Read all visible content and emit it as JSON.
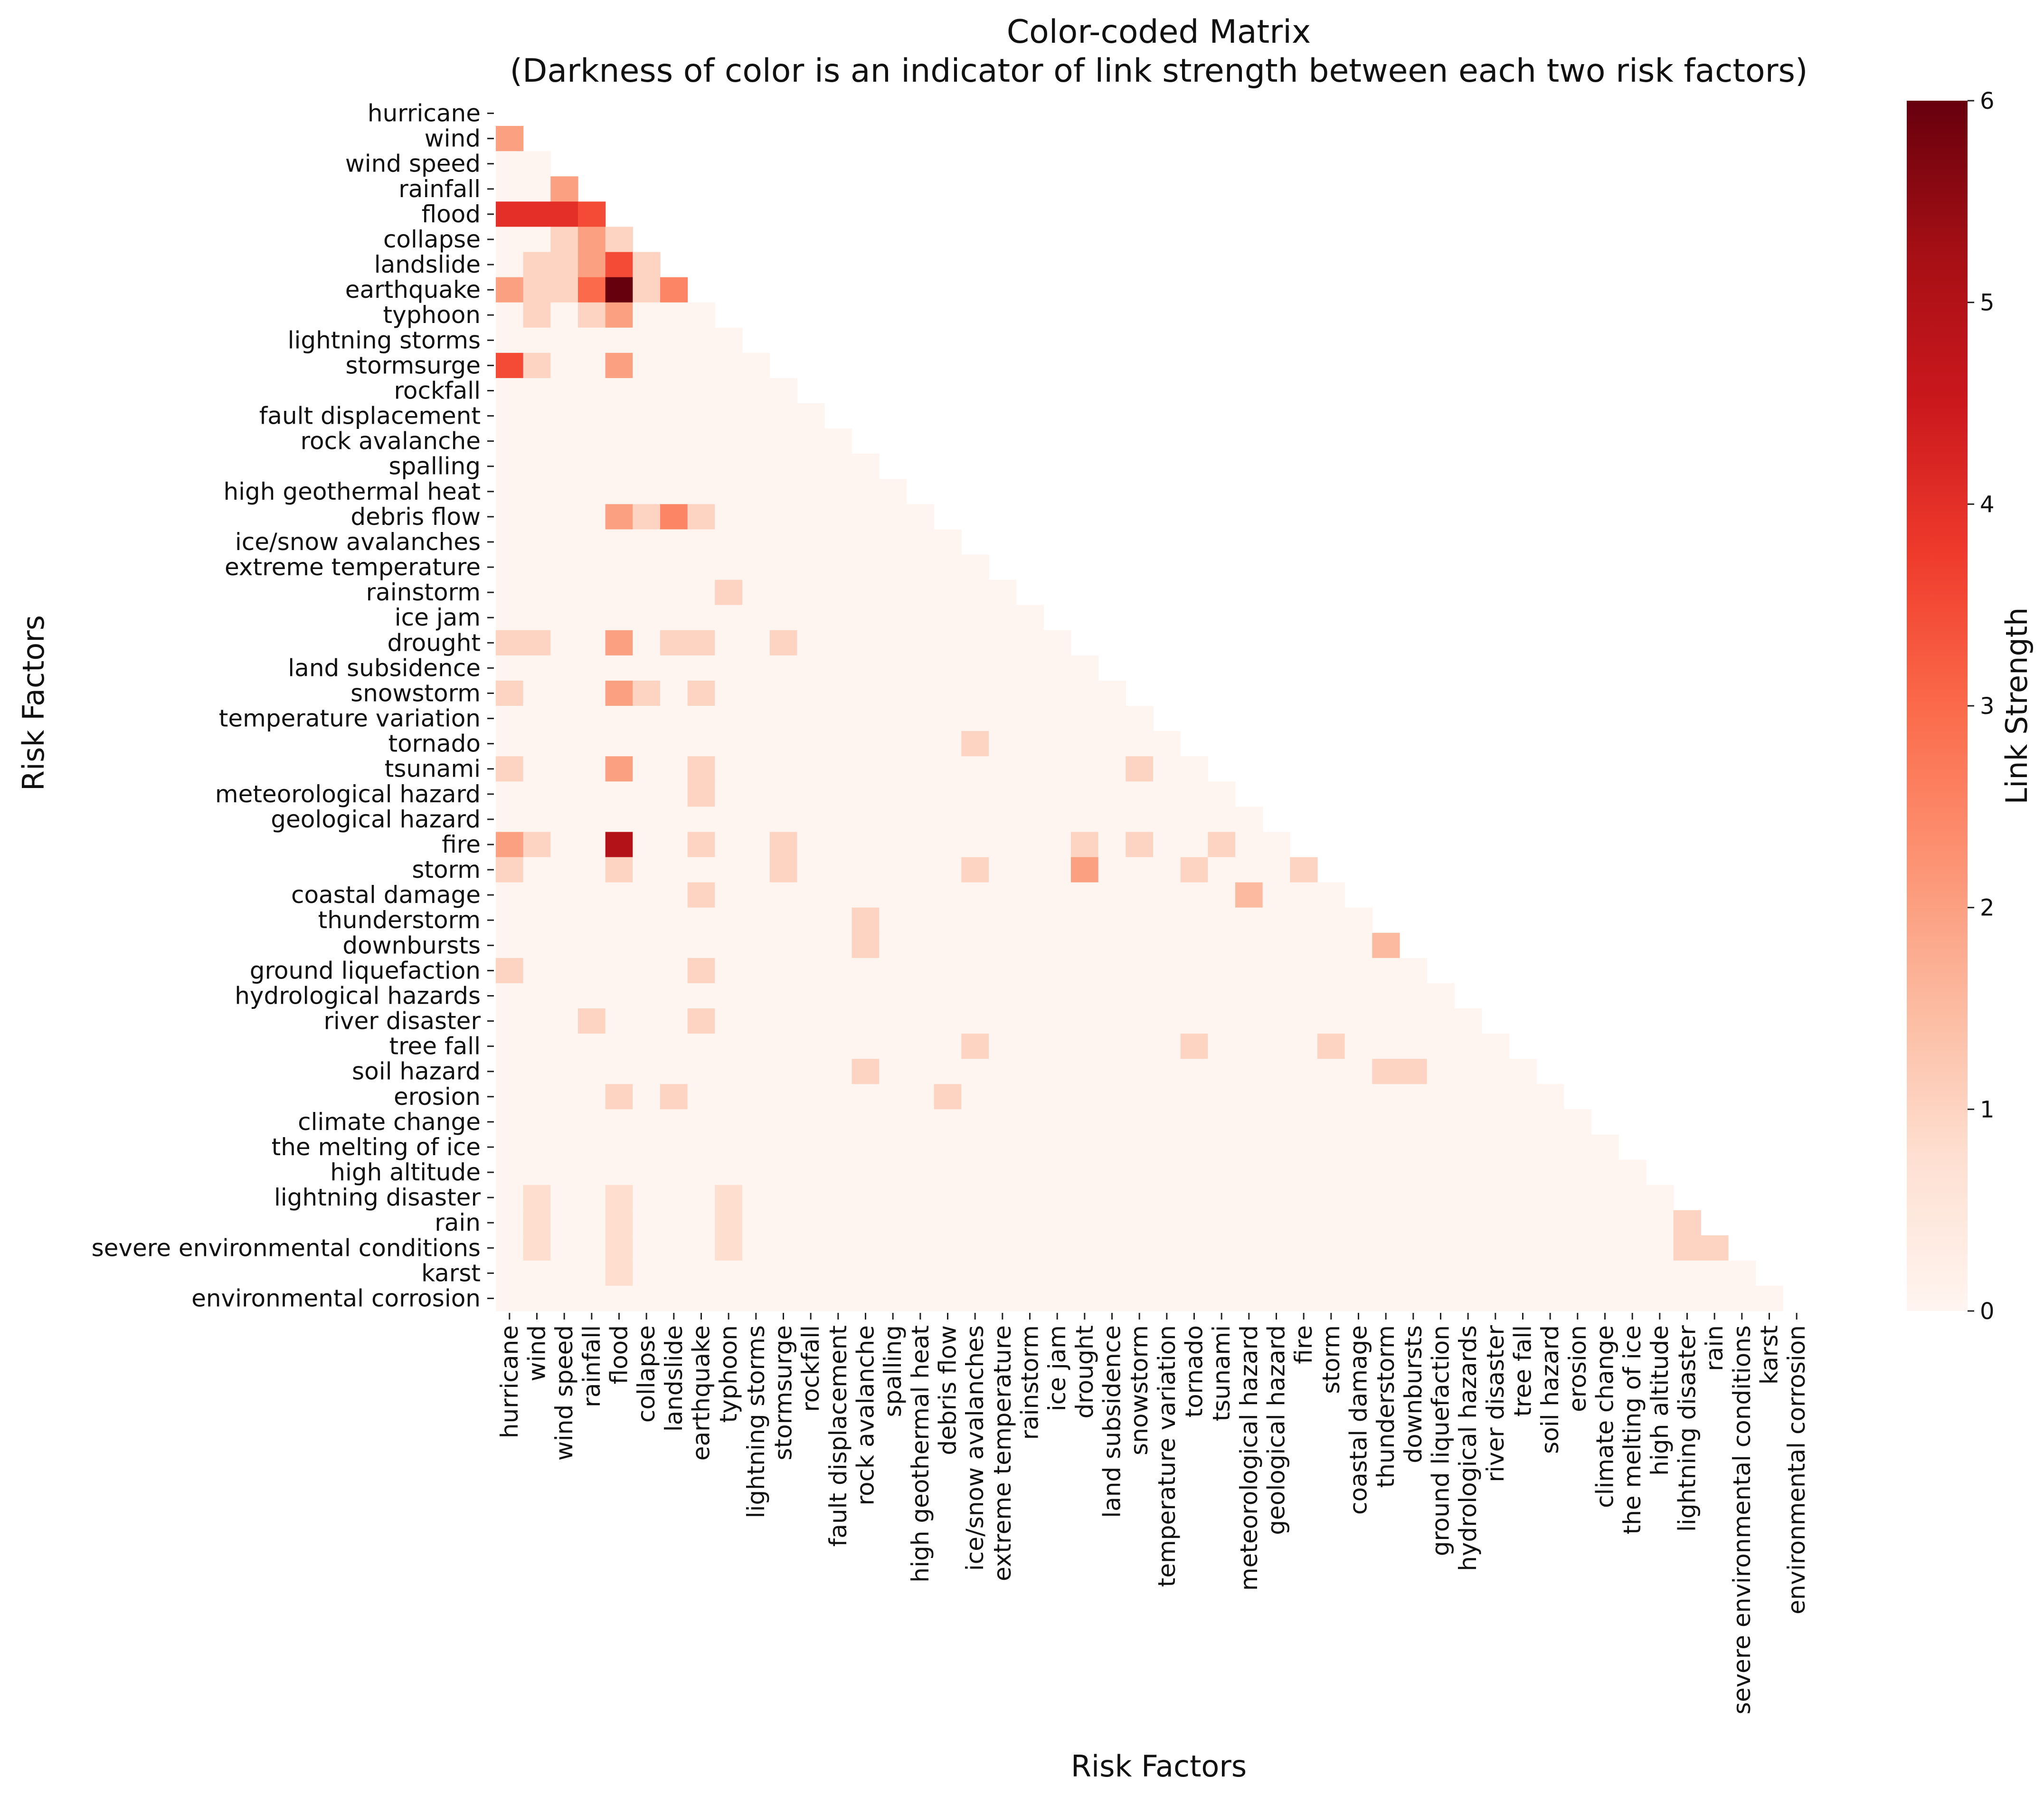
{
  "chart_data": {
    "type": "heatmap",
    "title_line1": "Color-coded Matrix",
    "title_line2": "(Darkness of color is an indicator of link strength between each two risk factors)",
    "xlabel": "Risk Factors",
    "ylabel": "Risk Factors",
    "colorbar_label": "Link Strength",
    "colorbar_ticks": [
      "0",
      "1",
      "2",
      "3",
      "4",
      "5",
      "6"
    ],
    "vmin": 0,
    "vmax": 6,
    "colormap": [
      "#fff5f0",
      "#fee0d2",
      "#fcbba1",
      "#fc9272",
      "#fb6a4a",
      "#ef3b2c",
      "#cb181d",
      "#a50f15",
      "#67000d"
    ],
    "mask": "lower-triangle (values shown for row index > column index)",
    "labels": [
      "hurricane",
      "wind",
      "wind speed",
      "rainfall",
      "flood",
      "collapse",
      "landslide",
      "earthquake",
      "typhoon",
      "lightning storms",
      "stormsurge",
      "rockfall",
      "fault displacement",
      "rock avalanche",
      "spalling",
      "high geothermal heat",
      "debris flow",
      "ice/snow avalanches",
      "extreme temperature",
      "rainstorm",
      "ice jam",
      "drought",
      "land subsidence",
      "snowstorm",
      "temperature variation",
      "tornado",
      "tsunami",
      "meteorological hazard",
      "geological hazard",
      "fire",
      "storm",
      "coastal damage",
      "thunderstorm",
      "downbursts",
      "ground liquefaction",
      "hydrological hazards",
      "river disaster",
      "tree fall",
      "soil hazard",
      "erosion",
      "climate change",
      "the melting of ice",
      "high altitude",
      "lightning disaster",
      "rain",
      "severe environmental conditions",
      "karst",
      "environmental corrosion"
    ],
    "nonzero_cells": [
      {
        "row": "wind",
        "col": "hurricane",
        "value": 2
      },
      {
        "row": "rainfall",
        "col": "wind speed",
        "value": 2
      },
      {
        "row": "flood",
        "col": "hurricane",
        "value": 4
      },
      {
        "row": "flood",
        "col": "wind",
        "value": 4
      },
      {
        "row": "flood",
        "col": "wind speed",
        "value": 4
      },
      {
        "row": "flood",
        "col": "rainfall",
        "value": 3.5
      },
      {
        "row": "collapse",
        "col": "wind speed",
        "value": 1
      },
      {
        "row": "collapse",
        "col": "rainfall",
        "value": 2
      },
      {
        "row": "collapse",
        "col": "flood",
        "value": 1
      },
      {
        "row": "landslide",
        "col": "wind",
        "value": 1
      },
      {
        "row": "landslide",
        "col": "wind speed",
        "value": 1
      },
      {
        "row": "landslide",
        "col": "rainfall",
        "value": 2
      },
      {
        "row": "landslide",
        "col": "flood",
        "value": 3.5
      },
      {
        "row": "landslide",
        "col": "collapse",
        "value": 1
      },
      {
        "row": "earthquake",
        "col": "hurricane",
        "value": 2
      },
      {
        "row": "earthquake",
        "col": "wind",
        "value": 1
      },
      {
        "row": "earthquake",
        "col": "wind speed",
        "value": 1
      },
      {
        "row": "earthquake",
        "col": "rainfall",
        "value": 3
      },
      {
        "row": "earthquake",
        "col": "flood",
        "value": 6
      },
      {
        "row": "earthquake",
        "col": "collapse",
        "value": 1
      },
      {
        "row": "earthquake",
        "col": "landslide",
        "value": 2.5
      },
      {
        "row": "typhoon",
        "col": "wind",
        "value": 1
      },
      {
        "row": "typhoon",
        "col": "rainfall",
        "value": 1
      },
      {
        "row": "typhoon",
        "col": "flood",
        "value": 2
      },
      {
        "row": "stormsurge",
        "col": "hurricane",
        "value": 3.5
      },
      {
        "row": "stormsurge",
        "col": "wind",
        "value": 1
      },
      {
        "row": "stormsurge",
        "col": "flood",
        "value": 2
      },
      {
        "row": "debris flow",
        "col": "flood",
        "value": 2
      },
      {
        "row": "debris flow",
        "col": "collapse",
        "value": 1
      },
      {
        "row": "debris flow",
        "col": "landslide",
        "value": 2.5
      },
      {
        "row": "debris flow",
        "col": "earthquake",
        "value": 1
      },
      {
        "row": "rainstorm",
        "col": "typhoon",
        "value": 1
      },
      {
        "row": "drought",
        "col": "hurricane",
        "value": 1
      },
      {
        "row": "drought",
        "col": "wind",
        "value": 1
      },
      {
        "row": "drought",
        "col": "flood",
        "value": 2
      },
      {
        "row": "drought",
        "col": "landslide",
        "value": 1
      },
      {
        "row": "drought",
        "col": "earthquake",
        "value": 1
      },
      {
        "row": "drought",
        "col": "stormsurge",
        "value": 1
      },
      {
        "row": "snowstorm",
        "col": "hurricane",
        "value": 1
      },
      {
        "row": "snowstorm",
        "col": "flood",
        "value": 2
      },
      {
        "row": "snowstorm",
        "col": "collapse",
        "value": 1
      },
      {
        "row": "snowstorm",
        "col": "earthquake",
        "value": 1
      },
      {
        "row": "tornado",
        "col": "ice/snow avalanches",
        "value": 1
      },
      {
        "row": "tsunami",
        "col": "hurricane",
        "value": 1
      },
      {
        "row": "tsunami",
        "col": "flood",
        "value": 2
      },
      {
        "row": "tsunami",
        "col": "earthquake",
        "value": 1
      },
      {
        "row": "tsunami",
        "col": "snowstorm",
        "value": 1
      },
      {
        "row": "meteorological hazard",
        "col": "earthquake",
        "value": 1
      },
      {
        "row": "fire",
        "col": "hurricane",
        "value": 2
      },
      {
        "row": "fire",
        "col": "wind",
        "value": 1
      },
      {
        "row": "fire",
        "col": "flood",
        "value": 5
      },
      {
        "row": "fire",
        "col": "earthquake",
        "value": 1
      },
      {
        "row": "fire",
        "col": "stormsurge",
        "value": 1
      },
      {
        "row": "fire",
        "col": "drought",
        "value": 1
      },
      {
        "row": "fire",
        "col": "snowstorm",
        "value": 1
      },
      {
        "row": "fire",
        "col": "tsunami",
        "value": 1
      },
      {
        "row": "storm",
        "col": "hurricane",
        "value": 1
      },
      {
        "row": "storm",
        "col": "flood",
        "value": 1
      },
      {
        "row": "storm",
        "col": "stormsurge",
        "value": 1
      },
      {
        "row": "storm",
        "col": "ice/snow avalanches",
        "value": 1
      },
      {
        "row": "storm",
        "col": "drought",
        "value": 2
      },
      {
        "row": "storm",
        "col": "tornado",
        "value": 1
      },
      {
        "row": "storm",
        "col": "fire",
        "value": 1
      },
      {
        "row": "coastal damage",
        "col": "earthquake",
        "value": 1
      },
      {
        "row": "coastal damage",
        "col": "meteorological hazard",
        "value": 1.5
      },
      {
        "row": "thunderstorm",
        "col": "rock avalanche",
        "value": 1
      },
      {
        "row": "downbursts",
        "col": "rock avalanche",
        "value": 1
      },
      {
        "row": "downbursts",
        "col": "thunderstorm",
        "value": 1.5
      },
      {
        "row": "ground liquefaction",
        "col": "hurricane",
        "value": 1
      },
      {
        "row": "ground liquefaction",
        "col": "earthquake",
        "value": 1
      },
      {
        "row": "river disaster",
        "col": "rainfall",
        "value": 1
      },
      {
        "row": "river disaster",
        "col": "earthquake",
        "value": 1
      },
      {
        "row": "tree fall",
        "col": "ice/snow avalanches",
        "value": 1
      },
      {
        "row": "tree fall",
        "col": "tornado",
        "value": 1
      },
      {
        "row": "tree fall",
        "col": "storm",
        "value": 1
      },
      {
        "row": "soil hazard",
        "col": "rock avalanche",
        "value": 1
      },
      {
        "row": "soil hazard",
        "col": "thunderstorm",
        "value": 1
      },
      {
        "row": "soil hazard",
        "col": "downbursts",
        "value": 1
      },
      {
        "row": "erosion",
        "col": "flood",
        "value": 1
      },
      {
        "row": "erosion",
        "col": "landslide",
        "value": 1
      },
      {
        "row": "erosion",
        "col": "debris flow",
        "value": 1
      },
      {
        "row": "lightning disaster",
        "col": "wind",
        "value": 0.8
      },
      {
        "row": "lightning disaster",
        "col": "flood",
        "value": 0.8
      },
      {
        "row": "lightning disaster",
        "col": "typhoon",
        "value": 0.8
      },
      {
        "row": "rain",
        "col": "wind",
        "value": 0.8
      },
      {
        "row": "rain",
        "col": "flood",
        "value": 0.8
      },
      {
        "row": "rain",
        "col": "typhoon",
        "value": 0.8
      },
      {
        "row": "severe environmental conditions",
        "col": "wind",
        "value": 0.8
      },
      {
        "row": "severe environmental conditions",
        "col": "flood",
        "value": 0.8
      },
      {
        "row": "severe environmental conditions",
        "col": "typhoon",
        "value": 0.8
      },
      {
        "row": "severe environmental conditions",
        "col": "lightning disaster",
        "value": 1
      },
      {
        "row": "severe environmental conditions",
        "col": "rain",
        "value": 1
      },
      {
        "row": "rain",
        "col": "lightning disaster",
        "value": 1
      },
      {
        "row": "karst",
        "col": "flood",
        "value": 0.8
      }
    ]
  }
}
